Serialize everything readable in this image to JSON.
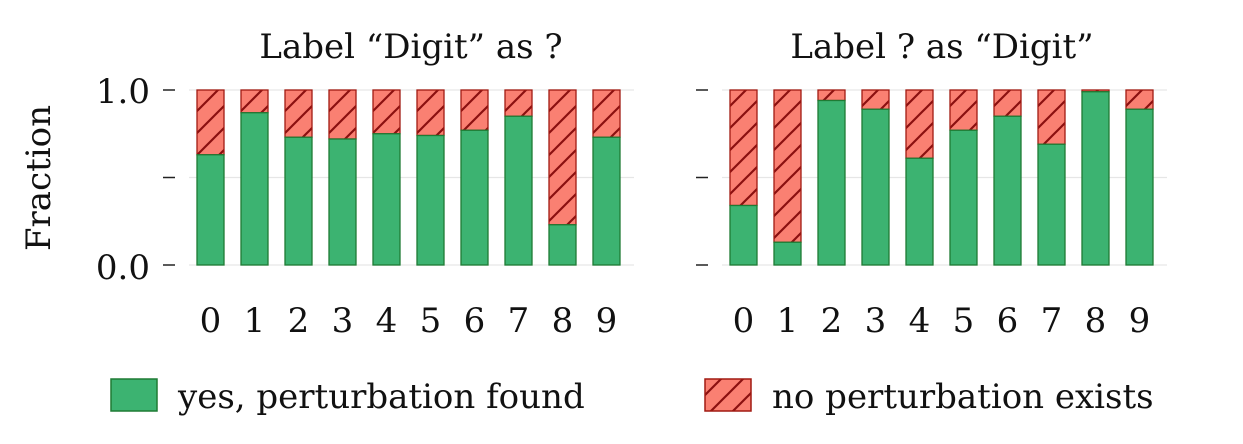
{
  "chart_data": [
    {
      "type": "bar",
      "stacked": true,
      "title": "Label “Digit” as ?",
      "ylabel": "Fraction",
      "ylim": [
        0,
        1
      ],
      "yticks": [
        "0.0",
        "1.0"
      ],
      "categories": [
        "0",
        "1",
        "2",
        "3",
        "4",
        "5",
        "6",
        "7",
        "8",
        "9"
      ],
      "series": [
        {
          "name": "yes, perturbation found",
          "values": [
            0.63,
            0.87,
            0.73,
            0.72,
            0.75,
            0.74,
            0.77,
            0.85,
            0.23,
            0.73
          ]
        },
        {
          "name": "no perturbation exists",
          "values": [
            0.37,
            0.13,
            0.27,
            0.28,
            0.25,
            0.26,
            0.23,
            0.15,
            0.77,
            0.27
          ]
        }
      ],
      "grid": true
    },
    {
      "type": "bar",
      "stacked": true,
      "title": "Label ? as “Digit”",
      "ylabel": "",
      "ylim": [
        0,
        1
      ],
      "yticks": [
        "",
        ""
      ],
      "categories": [
        "0",
        "1",
        "2",
        "3",
        "4",
        "5",
        "6",
        "7",
        "8",
        "9"
      ],
      "series": [
        {
          "name": "yes, perturbation found",
          "values": [
            0.34,
            0.13,
            0.94,
            0.89,
            0.61,
            0.77,
            0.85,
            0.69,
            0.99,
            0.89
          ]
        },
        {
          "name": "no perturbation exists",
          "values": [
            0.66,
            0.87,
            0.06,
            0.11,
            0.39,
            0.23,
            0.15,
            0.31,
            0.01,
            0.11
          ]
        }
      ],
      "grid": true
    }
  ],
  "legend": {
    "position": "bottom",
    "items": [
      {
        "label": "yes, perturbation found",
        "color": "#3cb371",
        "hatch": false
      },
      {
        "label": "no perturbation exists",
        "color": "#fa8072",
        "hatch": true
      }
    ]
  },
  "colors": {
    "found": "#3cb371",
    "found_edge": "#1e7b34",
    "none": "#fa8072",
    "none_edge": "#a11a12",
    "grid": "#e6e6e6"
  }
}
